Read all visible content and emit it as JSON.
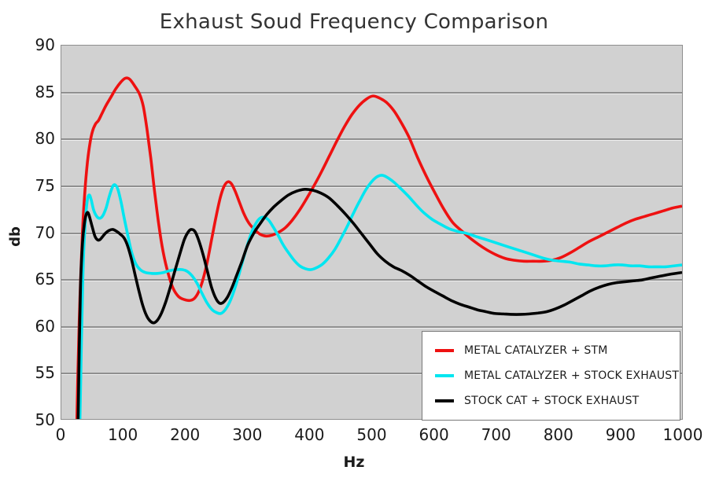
{
  "page": {
    "background": "#ffffff"
  },
  "chart_data": {
    "type": "line",
    "title": "Exhaust Soud Frequency Comparison",
    "xlabel": "Hz",
    "ylabel": "db",
    "xlim": [
      0,
      1000
    ],
    "ylim": [
      50,
      90
    ],
    "x_ticks": [
      0,
      100,
      200,
      300,
      400,
      500,
      600,
      700,
      800,
      900,
      1000
    ],
    "y_ticks": [
      90,
      85,
      80,
      75,
      70,
      65,
      60,
      55,
      50
    ],
    "grid": "horizontal",
    "plot_background": "#d1d1d1",
    "gridline_color": "#8f8f8f",
    "border_color": "#8e8e8e",
    "legend_position": "bottom-right",
    "legend_border_color": "#787878",
    "series": [
      {
        "name": "METAL CATALYZER + STM",
        "color": "#ee1111",
        "points": [
          [
            25,
            50
          ],
          [
            27,
            56
          ],
          [
            30,
            63
          ],
          [
            34,
            70
          ],
          [
            38,
            74.5
          ],
          [
            42,
            77.5
          ],
          [
            46,
            79.5
          ],
          [
            50,
            80.8
          ],
          [
            55,
            81.6
          ],
          [
            60,
            82
          ],
          [
            66,
            82.8
          ],
          [
            72,
            83.6
          ],
          [
            80,
            84.5
          ],
          [
            88,
            85.4
          ],
          [
            96,
            86.1
          ],
          [
            103,
            86.5
          ],
          [
            110,
            86.4
          ],
          [
            118,
            85.7
          ],
          [
            126,
            84.8
          ],
          [
            132,
            83.5
          ],
          [
            138,
            81
          ],
          [
            144,
            78
          ],
          [
            150,
            74.5
          ],
          [
            157,
            70.8
          ],
          [
            164,
            67.9
          ],
          [
            172,
            65.6
          ],
          [
            180,
            64
          ],
          [
            189,
            63.1
          ],
          [
            198,
            62.8
          ],
          [
            207,
            62.7
          ],
          [
            214,
            62.9
          ],
          [
            221,
            63.6
          ],
          [
            228,
            64.9
          ],
          [
            235,
            66.8
          ],
          [
            242,
            69.2
          ],
          [
            249,
            71.6
          ],
          [
            256,
            73.7
          ],
          [
            262,
            74.9
          ],
          [
            268,
            75.4
          ],
          [
            274,
            75.2
          ],
          [
            280,
            74.4
          ],
          [
            287,
            73.2
          ],
          [
            294,
            72
          ],
          [
            302,
            71
          ],
          [
            311,
            70.3
          ],
          [
            320,
            69.8
          ],
          [
            330,
            69.6
          ],
          [
            340,
            69.7
          ],
          [
            350,
            70
          ],
          [
            361,
            70.5
          ],
          [
            372,
            71.3
          ],
          [
            384,
            72.4
          ],
          [
            396,
            73.7
          ],
          [
            408,
            75.1
          ],
          [
            420,
            76.6
          ],
          [
            432,
            78.2
          ],
          [
            444,
            79.8
          ],
          [
            456,
            81.3
          ],
          [
            468,
            82.6
          ],
          [
            480,
            83.6
          ],
          [
            492,
            84.3
          ],
          [
            502,
            84.6
          ],
          [
            512,
            84.4
          ],
          [
            524,
            83.9
          ],
          [
            536,
            83
          ],
          [
            548,
            81.7
          ],
          [
            560,
            80.2
          ],
          [
            574,
            78
          ],
          [
            588,
            76
          ],
          [
            602,
            74.2
          ],
          [
            616,
            72.5
          ],
          [
            630,
            71.1
          ],
          [
            644,
            70.2
          ],
          [
            658,
            69.4
          ],
          [
            672,
            68.7
          ],
          [
            686,
            68.1
          ],
          [
            700,
            67.6
          ],
          [
            715,
            67.2
          ],
          [
            730,
            67
          ],
          [
            745,
            66.9
          ],
          [
            760,
            66.9
          ],
          [
            775,
            66.9
          ],
          [
            790,
            67
          ],
          [
            805,
            67.3
          ],
          [
            820,
            67.8
          ],
          [
            835,
            68.4
          ],
          [
            850,
            69
          ],
          [
            865,
            69.5
          ],
          [
            880,
            70
          ],
          [
            895,
            70.5
          ],
          [
            910,
            71
          ],
          [
            925,
            71.4
          ],
          [
            940,
            71.7
          ],
          [
            955,
            72
          ],
          [
            970,
            72.3
          ],
          [
            985,
            72.6
          ],
          [
            1000,
            72.8
          ]
        ]
      },
      {
        "name": "METAL CATALYZER + STOCK EXHAUST",
        "color": "#00e6f0",
        "points": [
          [
            30,
            50
          ],
          [
            32,
            57
          ],
          [
            34,
            63.5
          ],
          [
            36,
            68
          ],
          [
            39,
            71.5
          ],
          [
            42,
            73.5
          ],
          [
            45,
            74
          ],
          [
            48,
            73.5
          ],
          [
            52,
            72.4
          ],
          [
            57,
            71.7
          ],
          [
            62,
            71.5
          ],
          [
            67,
            71.8
          ],
          [
            72,
            72.6
          ],
          [
            77,
            73.8
          ],
          [
            82,
            74.8
          ],
          [
            86,
            75.1
          ],
          [
            91,
            74.6
          ],
          [
            96,
            73.3
          ],
          [
            101,
            71.6
          ],
          [
            107,
            69.7
          ],
          [
            113,
            67.9
          ],
          [
            120,
            66.6
          ],
          [
            127,
            66
          ],
          [
            135,
            65.7
          ],
          [
            145,
            65.6
          ],
          [
            155,
            65.6
          ],
          [
            165,
            65.7
          ],
          [
            175,
            65.9
          ],
          [
            185,
            66
          ],
          [
            195,
            66
          ],
          [
            203,
            65.8
          ],
          [
            211,
            65.3
          ],
          [
            219,
            64.5
          ],
          [
            227,
            63.4
          ],
          [
            235,
            62.4
          ],
          [
            243,
            61.7
          ],
          [
            250,
            61.4
          ],
          [
            257,
            61.3
          ],
          [
            264,
            61.7
          ],
          [
            271,
            62.5
          ],
          [
            278,
            63.7
          ],
          [
            285,
            65.2
          ],
          [
            292,
            66.9
          ],
          [
            299,
            68.5
          ],
          [
            306,
            69.9
          ],
          [
            313,
            70.9
          ],
          [
            320,
            71.5
          ],
          [
            327,
            71.6
          ],
          [
            334,
            71.3
          ],
          [
            341,
            70.6
          ],
          [
            349,
            69.7
          ],
          [
            357,
            68.7
          ],
          [
            366,
            67.8
          ],
          [
            375,
            67
          ],
          [
            384,
            66.4
          ],
          [
            393,
            66.1
          ],
          [
            402,
            66
          ],
          [
            411,
            66.2
          ],
          [
            421,
            66.6
          ],
          [
            431,
            67.3
          ],
          [
            441,
            68.2
          ],
          [
            451,
            69.4
          ],
          [
            461,
            70.7
          ],
          [
            471,
            72.1
          ],
          [
            481,
            73.4
          ],
          [
            491,
            74.6
          ],
          [
            501,
            75.5
          ],
          [
            510,
            76
          ],
          [
            518,
            76.1
          ],
          [
            527,
            75.8
          ],
          [
            537,
            75.3
          ],
          [
            548,
            74.6
          ],
          [
            560,
            73.8
          ],
          [
            572,
            72.9
          ],
          [
            584,
            72.1
          ],
          [
            597,
            71.4
          ],
          [
            610,
            70.9
          ],
          [
            624,
            70.4
          ],
          [
            638,
            70.1
          ],
          [
            652,
            69.9
          ],
          [
            666,
            69.6
          ],
          [
            680,
            69.3
          ],
          [
            694,
            69
          ],
          [
            708,
            68.7
          ],
          [
            722,
            68.4
          ],
          [
            736,
            68.1
          ],
          [
            750,
            67.8
          ],
          [
            764,
            67.5
          ],
          [
            778,
            67.2
          ],
          [
            792,
            67
          ],
          [
            806,
            66.9
          ],
          [
            820,
            66.8
          ],
          [
            834,
            66.6
          ],
          [
            848,
            66.5
          ],
          [
            862,
            66.4
          ],
          [
            876,
            66.4
          ],
          [
            890,
            66.5
          ],
          [
            904,
            66.5
          ],
          [
            918,
            66.4
          ],
          [
            932,
            66.4
          ],
          [
            946,
            66.3
          ],
          [
            960,
            66.3
          ],
          [
            974,
            66.3
          ],
          [
            987,
            66.4
          ],
          [
            1000,
            66.5
          ]
        ]
      },
      {
        "name": "STOCK CAT + STOCK EXHAUST",
        "color": "#000000",
        "points": [
          [
            27,
            50
          ],
          [
            29,
            58
          ],
          [
            31,
            64.5
          ],
          [
            34,
            68.8
          ],
          [
            37,
            70.9
          ],
          [
            40,
            71.9
          ],
          [
            43,
            72.1
          ],
          [
            46,
            71.5
          ],
          [
            50,
            70.5
          ],
          [
            54,
            69.6
          ],
          [
            58,
            69.2
          ],
          [
            62,
            69.2
          ],
          [
            66,
            69.5
          ],
          [
            71,
            69.9
          ],
          [
            77,
            70.2
          ],
          [
            83,
            70.3
          ],
          [
            89,
            70.1
          ],
          [
            95,
            69.8
          ],
          [
            101,
            69.4
          ],
          [
            107,
            68.5
          ],
          [
            113,
            67.1
          ],
          [
            119,
            65.4
          ],
          [
            125,
            63.7
          ],
          [
            131,
            62.2
          ],
          [
            137,
            61.1
          ],
          [
            143,
            60.5
          ],
          [
            149,
            60.3
          ],
          [
            155,
            60.6
          ],
          [
            161,
            61.3
          ],
          [
            168,
            62.5
          ],
          [
            175,
            64
          ],
          [
            183,
            65.9
          ],
          [
            191,
            67.7
          ],
          [
            198,
            69.2
          ],
          [
            204,
            70
          ],
          [
            209,
            70.3
          ],
          [
            215,
            70.1
          ],
          [
            221,
            69.2
          ],
          [
            228,
            67.7
          ],
          [
            235,
            65.9
          ],
          [
            242,
            64.1
          ],
          [
            249,
            62.9
          ],
          [
            255,
            62.4
          ],
          [
            261,
            62.5
          ],
          [
            268,
            63.1
          ],
          [
            275,
            64.1
          ],
          [
            283,
            65.5
          ],
          [
            291,
            66.9
          ],
          [
            300,
            68.6
          ],
          [
            310,
            69.9
          ],
          [
            320,
            70.9
          ],
          [
            331,
            71.9
          ],
          [
            342,
            72.7
          ],
          [
            354,
            73.4
          ],
          [
            366,
            74
          ],
          [
            379,
            74.4
          ],
          [
            392,
            74.6
          ],
          [
            405,
            74.5
          ],
          [
            418,
            74.2
          ],
          [
            431,
            73.7
          ],
          [
            444,
            72.9
          ],
          [
            457,
            72
          ],
          [
            470,
            71
          ],
          [
            483,
            69.9
          ],
          [
            496,
            68.8
          ],
          [
            509,
            67.7
          ],
          [
            522,
            66.9
          ],
          [
            535,
            66.3
          ],
          [
            548,
            65.9
          ],
          [
            561,
            65.4
          ],
          [
            574,
            64.8
          ],
          [
            587,
            64.2
          ],
          [
            600,
            63.7
          ],
          [
            614,
            63.2
          ],
          [
            628,
            62.7
          ],
          [
            642,
            62.3
          ],
          [
            656,
            62
          ],
          [
            670,
            61.7
          ],
          [
            684,
            61.5
          ],
          [
            698,
            61.3
          ],
          [
            712,
            61.25
          ],
          [
            726,
            61.2
          ],
          [
            740,
            61.2
          ],
          [
            754,
            61.25
          ],
          [
            768,
            61.35
          ],
          [
            782,
            61.5
          ],
          [
            796,
            61.8
          ],
          [
            810,
            62.2
          ],
          [
            824,
            62.7
          ],
          [
            838,
            63.2
          ],
          [
            852,
            63.7
          ],
          [
            866,
            64.1
          ],
          [
            880,
            64.4
          ],
          [
            894,
            64.6
          ],
          [
            908,
            64.7
          ],
          [
            922,
            64.8
          ],
          [
            936,
            64.9
          ],
          [
            950,
            65.1
          ],
          [
            965,
            65.3
          ],
          [
            980,
            65.5
          ],
          [
            1000,
            65.7
          ]
        ]
      }
    ]
  }
}
